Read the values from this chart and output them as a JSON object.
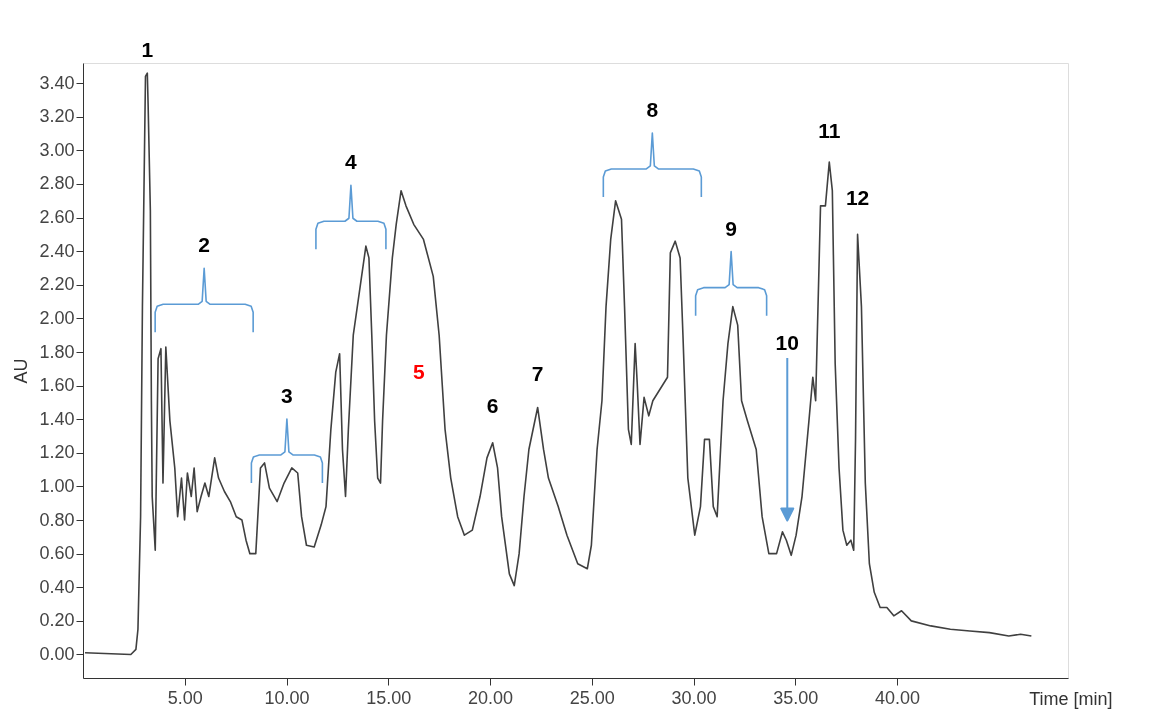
{
  "chart_data": {
    "type": "line",
    "ylabel": "AU",
    "xlabel": "Time [min]",
    "xlim": [
      0,
      48.4
    ],
    "ylim": [
      -0.14,
      3.52
    ],
    "xticks": [
      {
        "value": 5,
        "label": "5.00"
      },
      {
        "value": 10,
        "label": "10.00"
      },
      {
        "value": 15,
        "label": "15.00"
      },
      {
        "value": 20,
        "label": "20.00"
      },
      {
        "value": 25,
        "label": "25.00"
      },
      {
        "value": 30,
        "label": "30.00"
      },
      {
        "value": 35,
        "label": "35.00"
      },
      {
        "value": 40,
        "label": "40.00"
      }
    ],
    "yticks": [
      {
        "value": 0,
        "label": "0.00"
      },
      {
        "value": 0.2,
        "label": "0.20"
      },
      {
        "value": 0.4,
        "label": "0.40"
      },
      {
        "value": 0.6,
        "label": "0.60"
      },
      {
        "value": 0.8,
        "label": "0.80"
      },
      {
        "value": 1,
        "label": "1.00"
      },
      {
        "value": 1.2,
        "label": "1.20"
      },
      {
        "value": 1.4,
        "label": "1.40"
      },
      {
        "value": 1.6,
        "label": "1.60"
      },
      {
        "value": 1.8,
        "label": "1.80"
      },
      {
        "value": 2,
        "label": "2.00"
      },
      {
        "value": 2.2,
        "label": "2.20"
      },
      {
        "value": 2.4,
        "label": "2.40"
      },
      {
        "value": 2.6,
        "label": "2.60"
      },
      {
        "value": 2.8,
        "label": "2.80"
      },
      {
        "value": 3,
        "label": "3.00"
      },
      {
        "value": 3.2,
        "label": "3.20"
      },
      {
        "value": 3.4,
        "label": "3.40"
      }
    ],
    "grid": false,
    "marker": "none",
    "line_style": "solid",
    "series": [
      {
        "color": "#404040",
        "x": [
          0.1,
          2.35,
          2.6,
          2.7,
          2.83,
          2.92,
          3.07,
          3.16,
          3.2,
          3.31,
          3.36,
          3.4,
          3.55,
          3.69,
          3.83,
          3.93,
          4.07,
          4.27,
          4.51,
          4.65,
          4.84,
          4.99,
          5.13,
          5.32,
          5.46,
          5.61,
          5.8,
          5.99,
          6.18,
          6.47,
          6.66,
          6.95,
          7.24,
          7.53,
          7.81,
          8.01,
          8.2,
          8.49,
          8.72,
          8.92,
          9.16,
          9.54,
          9.88,
          10.26,
          10.55,
          10.74,
          10.98,
          11.36,
          11.7,
          11.94,
          12.18,
          12.42,
          12.61,
          12.75,
          12.9,
          13.04,
          13.28,
          13.62,
          13.9,
          14.05,
          14.19,
          14.33,
          14.48,
          14.62,
          14.72,
          14.91,
          15.2,
          15.39,
          15.63,
          15.87,
          16.25,
          16.73,
          17.21,
          17.5,
          17.79,
          18.07,
          18.41,
          18.74,
          19.13,
          19.51,
          19.85,
          20.13,
          20.37,
          20.57,
          20.95,
          21.19,
          21.43,
          21.67,
          21.91,
          22.34,
          22.63,
          22.87,
          23.35,
          23.78,
          24.31,
          24.78,
          24.98,
          25.26,
          25.5,
          25.7,
          25.93,
          26.17,
          26.46,
          26.61,
          26.8,
          26.94,
          27.13,
          27.23,
          27.37,
          27.57,
          27.8,
          28.0,
          28.72,
          28.86,
          29.1,
          29.34,
          29.48,
          29.72,
          30.06,
          30.34,
          30.54,
          30.78,
          30.97,
          31.16,
          31.45,
          31.69,
          31.93,
          32.17,
          32.36,
          32.65,
          33.08,
          33.37,
          33.7,
          34.08,
          34.37,
          34.56,
          34.8,
          35.04,
          35.33,
          35.67,
          35.86,
          36.0,
          36.24,
          36.48,
          36.67,
          36.82,
          36.96,
          37.15,
          37.34,
          37.53,
          37.73,
          37.87,
          37.96,
          38.06,
          38.25,
          38.44,
          38.64,
          38.88,
          39.17,
          39.5,
          39.84,
          40.22,
          40.7,
          41.66,
          42.62,
          43.58,
          44.54,
          45.49,
          46.07,
          46.6
        ],
        "values": [
          0.01,
          0.0,
          0.03,
          0.15,
          0.82,
          2.07,
          3.44,
          3.46,
          3.27,
          2.64,
          1.51,
          0.94,
          0.62,
          1.76,
          1.82,
          1.02,
          1.83,
          1.39,
          1.11,
          0.82,
          1.05,
          0.8,
          1.08,
          0.94,
          1.11,
          0.85,
          0.94,
          1.02,
          0.94,
          1.17,
          1.05,
          0.97,
          0.91,
          0.82,
          0.8,
          0.68,
          0.6,
          0.6,
          1.11,
          1.14,
          0.99,
          0.91,
          1.02,
          1.11,
          1.08,
          0.82,
          0.65,
          0.64,
          0.77,
          0.88,
          1.34,
          1.68,
          1.79,
          1.22,
          0.94,
          1.34,
          1.9,
          2.19,
          2.43,
          2.36,
          1.9,
          1.39,
          1.05,
          1.02,
          1.39,
          1.9,
          2.36,
          2.56,
          2.76,
          2.67,
          2.56,
          2.47,
          2.25,
          1.9,
          1.34,
          1.05,
          0.82,
          0.71,
          0.74,
          0.94,
          1.17,
          1.26,
          1.11,
          0.82,
          0.48,
          0.41,
          0.6,
          0.94,
          1.22,
          1.47,
          1.22,
          1.05,
          0.88,
          0.71,
          0.54,
          0.51,
          0.65,
          1.22,
          1.51,
          2.07,
          2.47,
          2.7,
          2.59,
          2.07,
          1.34,
          1.25,
          1.85,
          1.62,
          1.25,
          1.53,
          1.42,
          1.51,
          1.65,
          2.39,
          2.46,
          2.36,
          1.9,
          1.05,
          0.71,
          0.88,
          1.28,
          1.28,
          0.88,
          0.82,
          1.51,
          1.85,
          2.07,
          1.96,
          1.51,
          1.39,
          1.22,
          0.82,
          0.6,
          0.6,
          0.73,
          0.68,
          0.59,
          0.71,
          0.94,
          1.39,
          1.65,
          1.51,
          2.67,
          2.67,
          2.93,
          2.76,
          1.73,
          1.11,
          0.74,
          0.65,
          0.68,
          0.62,
          1.28,
          2.5,
          2.07,
          1.02,
          0.54,
          0.37,
          0.28,
          0.28,
          0.23,
          0.26,
          0.2,
          0.17,
          0.15,
          0.14,
          0.13,
          0.11,
          0.12,
          0.11
        ]
      }
    ],
    "annotations": [
      {
        "text": "1",
        "x": 3.16,
        "y": 3.46
      },
      "2",
      "3",
      "4",
      "5",
      {
        "text": "6",
        "x": 20.13,
        "y": 1.26
      },
      {
        "text": "7",
        "x": 22.34,
        "y": 1.47
      },
      "8",
      "9",
      "10",
      {
        "text": "11",
        "x": 36.67,
        "y": 2.93
      },
      {
        "text": "12",
        "x": 38.06,
        "y": 2.5
      }
    ]
  }
}
